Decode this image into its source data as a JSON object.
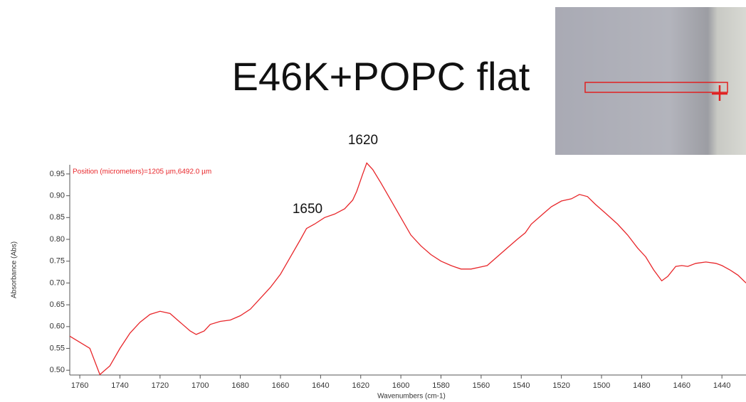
{
  "chart_data": {
    "type": "line",
    "title": "E46K+POPC flat",
    "note": "Position (micrometers)=1205 µm,6492.0 µm",
    "annotations": [
      "1620",
      "1650"
    ],
    "x_label": "Wavenumbers (cm-1)",
    "y_label": "Absorbance (Abs)",
    "xlim": [
      1765,
      1428
    ],
    "ylim": [
      0.489,
      0.971
    ],
    "xticks": [
      1760,
      1740,
      1720,
      1700,
      1680,
      1660,
      1640,
      1620,
      1600,
      1580,
      1560,
      1540,
      1520,
      1500,
      1480,
      1460,
      1440
    ],
    "yticks": [
      {
        "value": 0.5,
        "label": "0.50"
      },
      0.55,
      {
        "value": 0.6,
        "label": "0.60"
      },
      0.65,
      {
        "value": 0.7,
        "label": "0.70"
      },
      0.75,
      {
        "value": 0.8,
        "label": "0.80"
      },
      0.85,
      {
        "value": 0.9,
        "label": "0.90"
      },
      0.95
    ],
    "series": [
      {
        "color": "#e8262a",
        "x": [
          1765,
          1755,
          1750,
          1745,
          1740,
          1735,
          1730,
          1725,
          1720,
          1715,
          1710,
          1705,
          1702,
          1698,
          1695,
          1690,
          1685,
          1680,
          1675,
          1670,
          1665,
          1660,
          1655,
          1650,
          1647,
          1643,
          1638,
          1633,
          1628,
          1624,
          1622,
          1619,
          1617,
          1614,
          1610,
          1605,
          1600,
          1595,
          1590,
          1585,
          1580,
          1575,
          1570,
          1565,
          1560,
          1557,
          1552,
          1547,
          1542,
          1538,
          1535,
          1530,
          1525,
          1520,
          1515,
          1511,
          1507,
          1503,
          1498,
          1492,
          1487,
          1482,
          1478,
          1474,
          1470,
          1467,
          1463,
          1460,
          1457,
          1453,
          1448,
          1443,
          1440,
          1436,
          1432,
          1428
        ],
        "values": [
          0.578,
          0.55,
          0.49,
          0.51,
          0.55,
          0.585,
          0.61,
          0.628,
          0.635,
          0.63,
          0.61,
          0.59,
          0.582,
          0.59,
          0.605,
          0.612,
          0.615,
          0.625,
          0.64,
          0.665,
          0.69,
          0.72,
          0.76,
          0.8,
          0.825,
          0.835,
          0.85,
          0.858,
          0.87,
          0.89,
          0.91,
          0.95,
          0.975,
          0.96,
          0.93,
          0.89,
          0.85,
          0.81,
          0.785,
          0.765,
          0.75,
          0.74,
          0.732,
          0.732,
          0.737,
          0.74,
          0.76,
          0.78,
          0.8,
          0.815,
          0.835,
          0.855,
          0.875,
          0.888,
          0.893,
          0.903,
          0.898,
          0.88,
          0.86,
          0.835,
          0.81,
          0.78,
          0.76,
          0.73,
          0.705,
          0.715,
          0.738,
          0.74,
          0.738,
          0.745,
          0.748,
          0.745,
          0.74,
          0.73,
          0.718,
          0.7
        ]
      }
    ]
  }
}
